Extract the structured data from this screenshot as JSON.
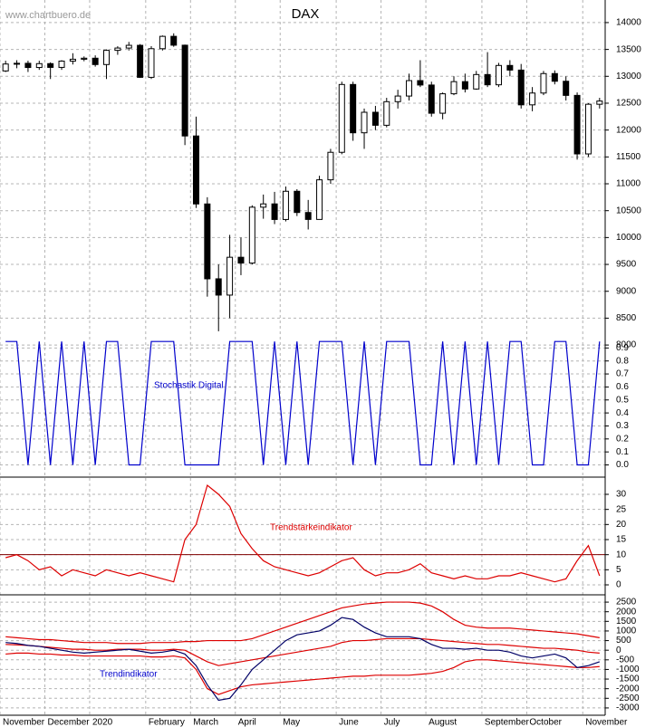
{
  "chart_data": [
    {
      "type": "candlestick",
      "title": "DAX",
      "annotation": "www.chartbuero.de",
      "color": "#000000",
      "open": [
        13100,
        13229,
        13242,
        13164,
        13236,
        13166,
        13283,
        13318,
        13337,
        13219,
        13483,
        13526,
        13577,
        12981,
        13514,
        13744,
        13579,
        11890,
        10625,
        9232,
        8929,
        9633,
        9525,
        10565,
        10626,
        10336,
        10861,
        10466,
        10337,
        11074,
        11586,
        12848,
        11949,
        12331,
        12089,
        12528,
        12633,
        12920,
        12838,
        12313,
        12675,
        12901,
        12764,
        13033,
        12842,
        13202,
        13116,
        12469,
        12689,
        13051,
        12908,
        12645,
        11556,
        12480
      ],
      "high": [
        13290,
        13300,
        13290,
        13290,
        13260,
        13300,
        13430,
        13370,
        13390,
        13500,
        13560,
        13640,
        13600,
        13560,
        13760,
        13800,
        13590,
        12250,
        10750,
        9500,
        10050,
        10000,
        10600,
        10800,
        10850,
        10950,
        10900,
        10700,
        11150,
        11650,
        12900,
        12900,
        12400,
        12450,
        12600,
        12750,
        13050,
        13300,
        12900,
        12700,
        13000,
        13050,
        13100,
        13450,
        13250,
        13300,
        13230,
        12800,
        13100,
        13110,
        13000,
        12700,
        12500,
        12600
      ],
      "low": [
        13080,
        13150,
        13080,
        13120,
        12950,
        13120,
        13220,
        13280,
        13180,
        12950,
        13400,
        13480,
        12970,
        12950,
        13480,
        13550,
        11720,
        10550,
        8900,
        8256,
        8500,
        9300,
        9500,
        10350,
        10250,
        10300,
        10400,
        10150,
        10350,
        11000,
        11550,
        11800,
        11650,
        12000,
        12050,
        12400,
        12550,
        12800,
        12250,
        12200,
        12650,
        12700,
        12750,
        12800,
        12800,
        13000,
        12400,
        12350,
        12650,
        12850,
        12550,
        11450,
        11500,
        12400
      ],
      "close": [
        13229,
        13242,
        13164,
        13236,
        13166,
        13283,
        13318,
        13337,
        13219,
        13483,
        13526,
        13577,
        12981,
        13514,
        13744,
        13579,
        11890,
        10625,
        9232,
        8929,
        9633,
        9525,
        10565,
        10626,
        10336,
        10861,
        10466,
        10337,
        11074,
        11586,
        12848,
        11949,
        12331,
        12089,
        12528,
        12633,
        12920,
        12838,
        12313,
        12675,
        12901,
        12764,
        13033,
        12842,
        13202,
        13116,
        12469,
        12689,
        13051,
        12908,
        12645,
        11556,
        12480,
        12540
      ],
      "ylim": [
        7850,
        14420
      ],
      "yticks": [
        8000,
        8500,
        9000,
        9500,
        10000,
        10500,
        11000,
        11500,
        12000,
        12500,
        13000,
        13500,
        14000
      ],
      "grid": true
    },
    {
      "type": "line",
      "annotation": "Stochastik Digital",
      "annotation_color": "#0000cc",
      "series": [
        {
          "color": "#0000cc",
          "values": [
            0.95,
            0.95,
            0,
            0.95,
            0,
            0.95,
            0,
            0.95,
            0,
            0.95,
            0.95,
            0,
            0,
            0.95,
            0.95,
            0.95,
            0,
            0,
            0,
            0,
            0.95,
            0.95,
            0.95,
            0,
            0.95,
            0,
            0.95,
            0,
            0.95,
            0.95,
            0.95,
            0,
            0.95,
            0,
            0.95,
            0.95,
            0.95,
            0,
            0,
            0.95,
            0,
            0.95,
            0,
            0.95,
            0,
            0.95,
            0.95,
            0,
            0,
            0.95,
            0.95,
            0,
            0,
            0.95
          ]
        }
      ],
      "ylim": [
        -0.08,
        1.0
      ],
      "yticks": [
        {
          "value": 0,
          "label": "0.0"
        },
        0.1,
        0.2,
        0.3,
        0.4,
        0.5,
        0.6,
        0.7,
        0.8,
        0.9
      ],
      "grid": true
    },
    {
      "type": "line",
      "annotation": "Trendstärkeindikator",
      "annotation_color": "#dd0000",
      "series": [
        {
          "color": "#dd0000",
          "values": [
            9,
            10,
            8,
            5,
            6,
            3,
            5,
            4,
            3,
            5,
            4,
            3,
            4,
            3,
            2,
            1,
            15,
            20,
            33,
            30,
            26,
            17,
            12,
            8,
            6,
            5,
            4,
            3,
            4,
            6,
            8,
            9,
            5,
            3,
            4,
            4,
            5,
            7,
            4,
            3,
            2,
            3,
            2,
            2,
            3,
            3,
            4,
            3,
            2,
            1,
            2,
            8,
            13,
            3
          ]
        }
      ],
      "hline": 10,
      "hline_color": "#800000",
      "ylim": [
        -2.7,
        35.7
      ],
      "yticks": [
        0,
        5,
        10,
        15,
        20,
        25,
        30
      ],
      "grid": true
    },
    {
      "type": "line",
      "annotation": "Trendindikator",
      "annotation_color": "#0000cc",
      "categories": [
        "November",
        null,
        null,
        null,
        "December",
        null,
        null,
        null,
        "2020",
        null,
        null,
        null,
        null,
        "February",
        null,
        null,
        null,
        "March",
        null,
        null,
        null,
        "April",
        null,
        null,
        null,
        "May",
        null,
        null,
        null,
        null,
        "June",
        null,
        null,
        null,
        "July",
        null,
        null,
        null,
        "August",
        null,
        null,
        null,
        null,
        "September",
        null,
        null,
        null,
        "October",
        null,
        null,
        null,
        null,
        "November",
        null
      ],
      "series": [
        {
          "color": "#dd0000",
          "values": [
            700,
            650,
            600,
            550,
            550,
            500,
            450,
            400,
            400,
            400,
            350,
            350,
            350,
            400,
            400,
            400,
            450,
            450,
            500,
            500,
            500,
            500,
            600,
            800,
            1000,
            1200,
            1400,
            1600,
            1800,
            2000,
            2200,
            2300,
            2400,
            2450,
            2500,
            2500,
            2500,
            2450,
            2300,
            2000,
            1600,
            1300,
            1200,
            1150,
            1150,
            1150,
            1100,
            1050,
            1000,
            950,
            900,
            850,
            750,
            650
          ]
        },
        {
          "color": "#dd0000",
          "values": [
            300,
            280,
            250,
            200,
            150,
            100,
            50,
            50,
            0,
            0,
            50,
            50,
            50,
            0,
            0,
            50,
            0,
            -300,
            -600,
            -800,
            -700,
            -600,
            -500,
            -400,
            -300,
            -200,
            -100,
            0,
            100,
            200,
            400,
            500,
            500,
            550,
            600,
            600,
            600,
            600,
            550,
            500,
            450,
            400,
            350,
            300,
            300,
            250,
            200,
            150,
            100,
            100,
            50,
            0,
            -100,
            -150
          ]
        },
        {
          "color": "#dd0000",
          "values": [
            -200,
            -150,
            -150,
            -200,
            -200,
            -250,
            -250,
            -300,
            -300,
            -300,
            -300,
            -300,
            -300,
            -350,
            -350,
            -300,
            -400,
            -1000,
            -2000,
            -2300,
            -2100,
            -1900,
            -1800,
            -1750,
            -1700,
            -1650,
            -1600,
            -1550,
            -1500,
            -1450,
            -1400,
            -1350,
            -1350,
            -1300,
            -1300,
            -1300,
            -1300,
            -1250,
            -1200,
            -1100,
            -900,
            -600,
            -500,
            -500,
            -550,
            -600,
            -650,
            -700,
            -750,
            -800,
            -850,
            -900,
            -900,
            -850
          ]
        },
        {
          "color": "#000066",
          "values": [
            400,
            350,
            250,
            200,
            100,
            0,
            -100,
            -150,
            -100,
            -50,
            0,
            50,
            -50,
            -150,
            -100,
            0,
            -200,
            -800,
            -1800,
            -2600,
            -2500,
            -1800,
            -1000,
            -500,
            0,
            500,
            800,
            900,
            1000,
            1300,
            1700,
            1600,
            1200,
            900,
            700,
            700,
            700,
            600,
            300,
            100,
            100,
            50,
            100,
            0,
            0,
            -100,
            -300,
            -400,
            -300,
            -200,
            -400,
            -900,
            -800,
            -600
          ]
        }
      ],
      "ylim": [
        -3380,
        2880
      ],
      "yticks": [
        -3000,
        -2500,
        -2000,
        -1500,
        -1000,
        -500,
        0,
        500,
        1000,
        1500,
        2000,
        2500
      ],
      "grid": true
    }
  ]
}
